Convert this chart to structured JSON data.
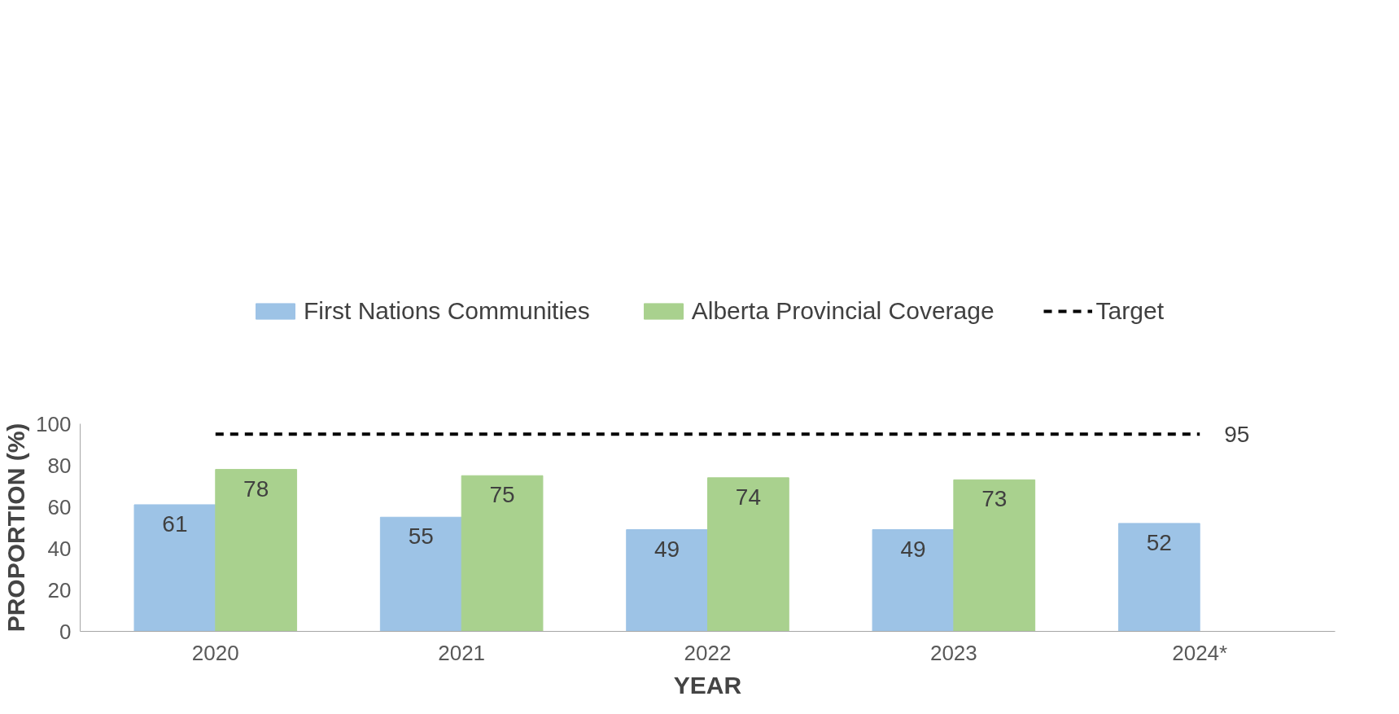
{
  "chart_data": {
    "type": "bar",
    "xlabel": "YEAR",
    "ylabel": "PROPORTION (%)",
    "categories": [
      "2020",
      "2021",
      "2022",
      "2023",
      "2024*"
    ],
    "series": [
      {
        "name": "First Nations Communities",
        "color": "#9dc3e6",
        "values": [
          61,
          55,
          49,
          49,
          52
        ]
      },
      {
        "name": "Alberta Provincial Coverage",
        "color": "#a9d18e",
        "values": [
          78,
          75,
          74,
          73,
          null
        ]
      },
      {
        "name": "Target",
        "type": "line",
        "color": "#000000",
        "line_style": "dashed",
        "values": [
          95,
          95,
          95,
          95,
          95
        ],
        "value_labels": [
          null,
          null,
          null,
          null,
          "95"
        ]
      }
    ],
    "data_labels": true,
    "ylim": [
      0,
      100
    ],
    "yticks": [
      0,
      20,
      40,
      60,
      80,
      100
    ],
    "grid": false,
    "legend": "top"
  }
}
